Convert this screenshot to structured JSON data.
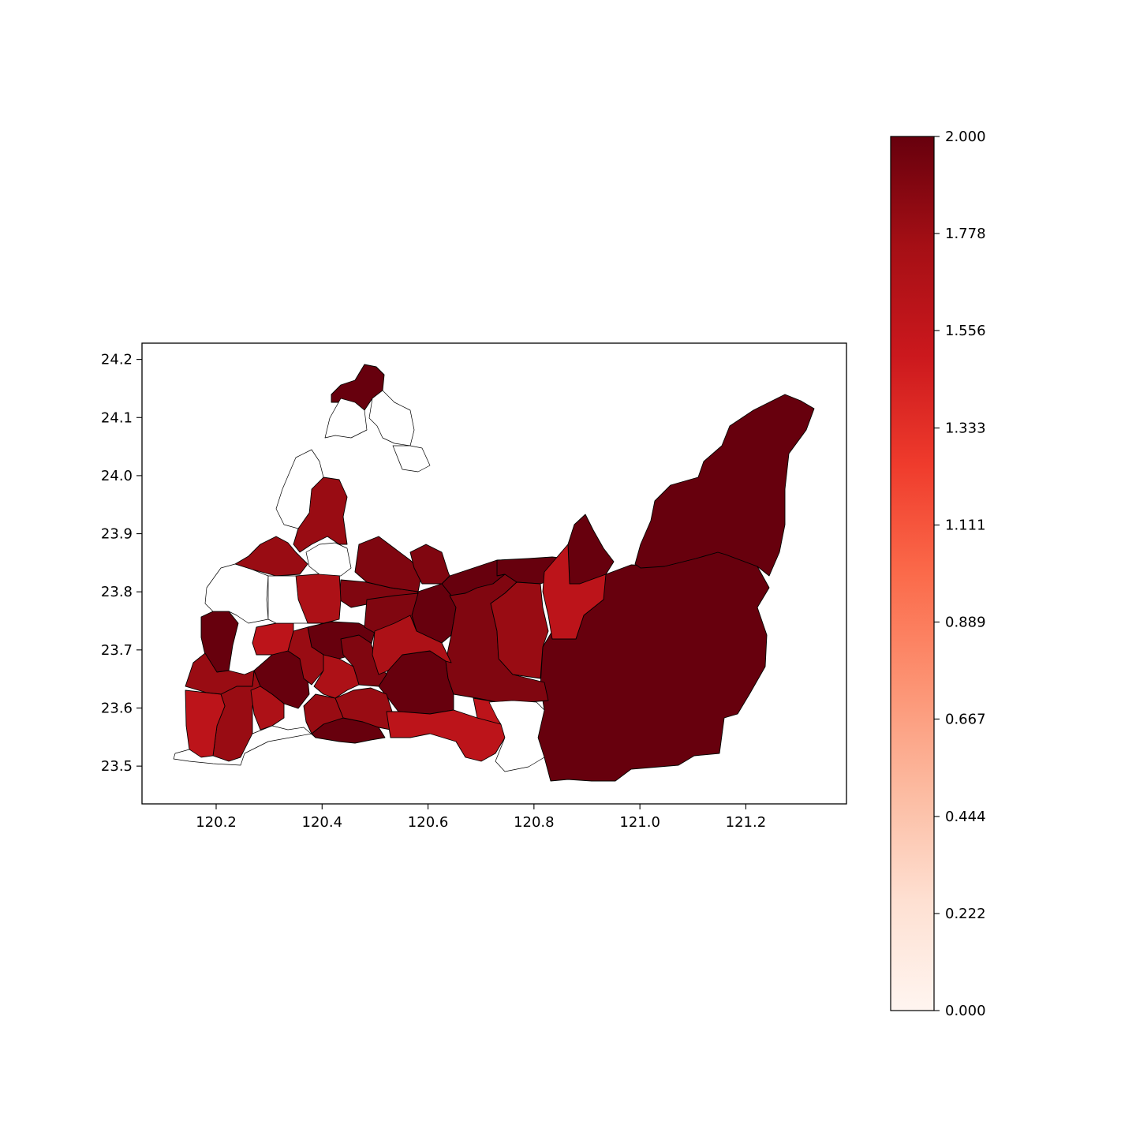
{
  "chart_data": {
    "type": "choropleth-map",
    "title": "",
    "xlabel": "",
    "ylabel": "",
    "xlim": [
      120.06,
      121.39
    ],
    "ylim": [
      23.435,
      24.228
    ],
    "x_ticks": [
      "120.2",
      "120.4",
      "120.6",
      "120.8",
      "121.0",
      "121.2"
    ],
    "y_ticks": [
      "23.5",
      "23.6",
      "23.7",
      "23.8",
      "23.9",
      "24.0",
      "24.1",
      "24.2"
    ],
    "colorbar": {
      "cmap": "Reds",
      "range": [
        0,
        2
      ],
      "ticks": [
        "0.000",
        "0.222",
        "0.444",
        "0.667",
        "0.889",
        "1.111",
        "1.333",
        "1.556",
        "1.778",
        "2.000"
      ]
    },
    "region_values": [
      2,
      2,
      2,
      2,
      2,
      2,
      2,
      2,
      2,
      2,
      2,
      2,
      1.9,
      1.9,
      1.9,
      1.9,
      1.9,
      1.9,
      1.8,
      1.8,
      1.8,
      1.8,
      1.8,
      1.8,
      1.8,
      1.8,
      1.7,
      1.7,
      1.7,
      1.7,
      1.6,
      1.6,
      1.6,
      1.6,
      1.6,
      0,
      0,
      0,
      0,
      0,
      0,
      0,
      0,
      0
    ]
  }
}
